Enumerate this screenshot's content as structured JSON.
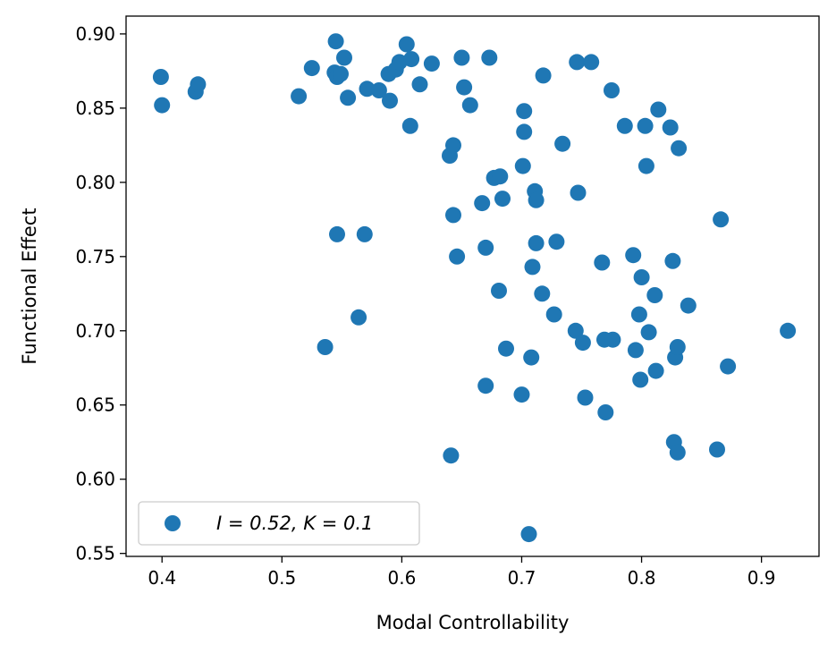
{
  "chart_data": {
    "type": "scatter",
    "xlabel": "Modal Controllability",
    "ylabel": "Functional Effect",
    "xlim": [
      0.37,
      0.948
    ],
    "ylim": [
      0.548,
      0.912
    ],
    "x_ticks": [
      {
        "value": 0.4,
        "label": "0.4"
      },
      {
        "value": 0.5,
        "label": "0.5"
      },
      {
        "value": 0.6,
        "label": "0.6"
      },
      {
        "value": 0.7,
        "label": "0.7"
      },
      {
        "value": 0.8,
        "label": "0.8"
      },
      {
        "value": 0.9,
        "label": "0.9"
      }
    ],
    "y_ticks": [
      {
        "value": 0.55,
        "label": "0.55"
      },
      {
        "value": 0.6,
        "label": "0.60"
      },
      {
        "value": 0.65,
        "label": "0.65"
      },
      {
        "value": 0.7,
        "label": "0.70"
      },
      {
        "value": 0.75,
        "label": "0.75"
      },
      {
        "value": 0.8,
        "label": "0.80"
      },
      {
        "value": 0.85,
        "label": "0.85"
      },
      {
        "value": 0.9,
        "label": "0.90"
      }
    ],
    "grid": false,
    "legend": {
      "placement": "lower-left"
    },
    "series": [
      {
        "name": "I = 0.52, K = 0.1",
        "color": "#1f77b4",
        "marker": "circle",
        "points": [
          [
            0.399,
            0.871
          ],
          [
            0.4,
            0.852
          ],
          [
            0.428,
            0.861
          ],
          [
            0.43,
            0.866
          ],
          [
            0.514,
            0.858
          ],
          [
            0.525,
            0.877
          ],
          [
            0.536,
            0.689
          ],
          [
            0.545,
            0.895
          ],
          [
            0.544,
            0.874
          ],
          [
            0.546,
            0.871
          ],
          [
            0.549,
            0.873
          ],
          [
            0.552,
            0.884
          ],
          [
            0.555,
            0.857
          ],
          [
            0.546,
            0.765
          ],
          [
            0.564,
            0.709
          ],
          [
            0.569,
            0.765
          ],
          [
            0.571,
            0.863
          ],
          [
            0.581,
            0.862
          ],
          [
            0.589,
            0.873
          ],
          [
            0.59,
            0.855
          ],
          [
            0.595,
            0.876
          ],
          [
            0.598,
            0.881
          ],
          [
            0.604,
            0.893
          ],
          [
            0.608,
            0.883
          ],
          [
            0.607,
            0.838
          ],
          [
            0.615,
            0.866
          ],
          [
            0.625,
            0.88
          ],
          [
            0.64,
            0.818
          ],
          [
            0.643,
            0.825
          ],
          [
            0.643,
            0.778
          ],
          [
            0.646,
            0.75
          ],
          [
            0.65,
            0.884
          ],
          [
            0.652,
            0.864
          ],
          [
            0.657,
            0.852
          ],
          [
            0.641,
            0.616
          ],
          [
            0.667,
            0.786
          ],
          [
            0.67,
            0.756
          ],
          [
            0.673,
            0.884
          ],
          [
            0.67,
            0.663
          ],
          [
            0.677,
            0.803
          ],
          [
            0.682,
            0.804
          ],
          [
            0.681,
            0.727
          ],
          [
            0.684,
            0.789
          ],
          [
            0.687,
            0.688
          ],
          [
            0.7,
            0.657
          ],
          [
            0.702,
            0.848
          ],
          [
            0.702,
            0.834
          ],
          [
            0.701,
            0.811
          ],
          [
            0.706,
            0.563
          ],
          [
            0.709,
            0.743
          ],
          [
            0.708,
            0.682
          ],
          [
            0.711,
            0.794
          ],
          [
            0.712,
            0.788
          ],
          [
            0.712,
            0.759
          ],
          [
            0.717,
            0.725
          ],
          [
            0.718,
            0.872
          ],
          [
            0.727,
            0.711
          ],
          [
            0.729,
            0.76
          ],
          [
            0.734,
            0.826
          ],
          [
            0.745,
            0.7
          ],
          [
            0.746,
            0.881
          ],
          [
            0.747,
            0.793
          ],
          [
            0.751,
            0.692
          ],
          [
            0.753,
            0.655
          ],
          [
            0.758,
            0.881
          ],
          [
            0.767,
            0.746
          ],
          [
            0.769,
            0.694
          ],
          [
            0.77,
            0.645
          ],
          [
            0.775,
            0.862
          ],
          [
            0.776,
            0.694
          ],
          [
            0.786,
            0.838
          ],
          [
            0.793,
            0.751
          ],
          [
            0.795,
            0.687
          ],
          [
            0.798,
            0.711
          ],
          [
            0.8,
            0.736
          ],
          [
            0.799,
            0.667
          ],
          [
            0.803,
            0.838
          ],
          [
            0.804,
            0.811
          ],
          [
            0.806,
            0.699
          ],
          [
            0.811,
            0.724
          ],
          [
            0.812,
            0.673
          ],
          [
            0.814,
            0.849
          ],
          [
            0.824,
            0.837
          ],
          [
            0.826,
            0.747
          ],
          [
            0.827,
            0.625
          ],
          [
            0.828,
            0.682
          ],
          [
            0.83,
            0.689
          ],
          [
            0.83,
            0.618
          ],
          [
            0.831,
            0.823
          ],
          [
            0.839,
            0.717
          ],
          [
            0.863,
            0.62
          ],
          [
            0.866,
            0.775
          ],
          [
            0.872,
            0.676
          ],
          [
            0.922,
            0.7
          ]
        ]
      }
    ]
  }
}
